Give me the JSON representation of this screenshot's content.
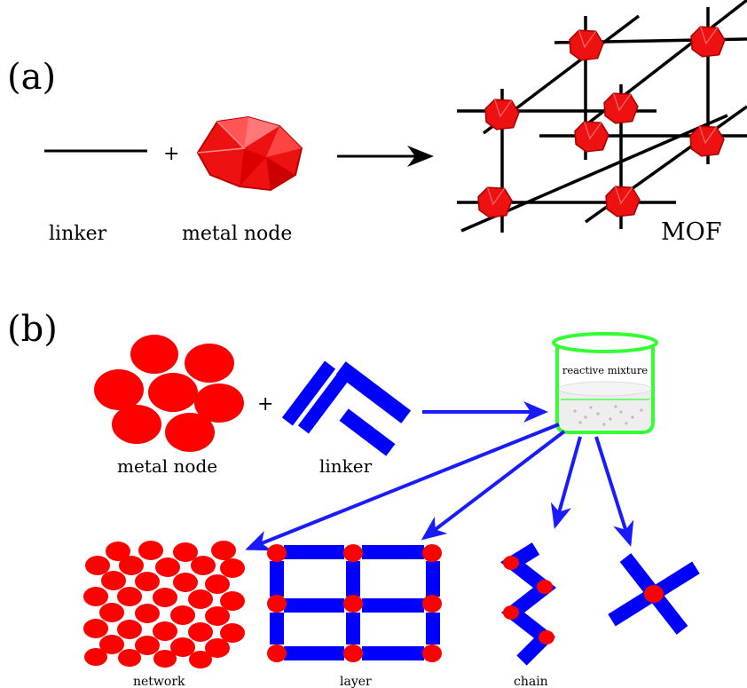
{
  "panel_a": {
    "tag": "(a)",
    "plus": "+",
    "linker_label": "linker",
    "node_label": "metal node",
    "mof_label": "MOF"
  },
  "panel_b": {
    "tag": "(b)",
    "plus": "+",
    "node_label": "metal node",
    "linker_label": "linker",
    "beaker_label": "reactive mixture",
    "products": {
      "network": "network",
      "layer": "layer",
      "chain": "chain"
    }
  },
  "colors": {
    "node_red": "#ff0000",
    "linker_blue": "#0000ff",
    "arrow_blue": "#1a1aff",
    "beaker_green": "#33ff33",
    "line_black": "#000000"
  }
}
